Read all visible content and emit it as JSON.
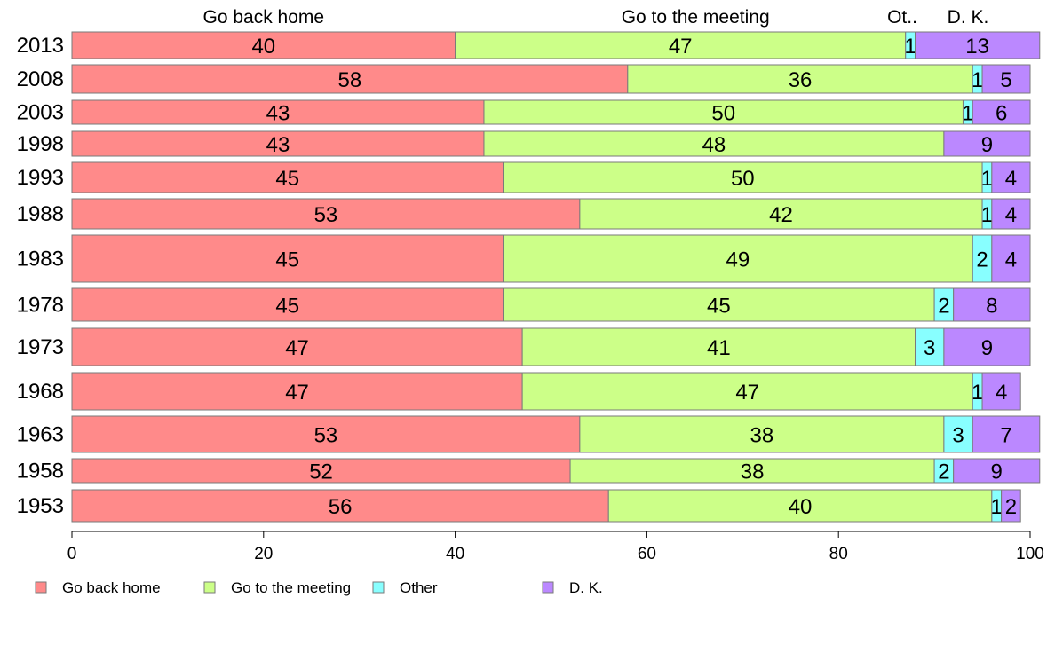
{
  "chart_data": {
    "type": "bar",
    "orientation": "horizontal",
    "stacked": true,
    "categories": [
      "2013",
      "2008",
      "2003",
      "1998",
      "1993",
      "1988",
      "1983",
      "1978",
      "1973",
      "1968",
      "1963",
      "1958",
      "1953"
    ],
    "series": [
      {
        "name": "Go back home",
        "color": "#ff8a8a",
        "values": [
          40,
          58,
          43,
          43,
          45,
          53,
          45,
          45,
          47,
          47,
          53,
          52,
          56
        ]
      },
      {
        "name": "Go to the meeting",
        "color": "#ccff88",
        "values": [
          47,
          36,
          50,
          48,
          50,
          42,
          49,
          45,
          41,
          47,
          38,
          38,
          40
        ]
      },
      {
        "name": "Other",
        "color": "#88ffff",
        "values": [
          1,
          1,
          1,
          0,
          1,
          1,
          2,
          2,
          3,
          1,
          3,
          2,
          1
        ]
      },
      {
        "name": "D. K.",
        "color": "#bb88ff",
        "values": [
          13,
          5,
          6,
          9,
          4,
          4,
          4,
          8,
          9,
          4,
          7,
          9,
          2
        ]
      }
    ],
    "column_headers": [
      "Go back home",
      "Go to the meeting",
      "Ot..",
      "D. K."
    ],
    "xlim": [
      0,
      100
    ],
    "xticks": [
      "0",
      "20",
      "40",
      "60",
      "80",
      "100"
    ],
    "legend_position": "bottom",
    "grid": false
  }
}
